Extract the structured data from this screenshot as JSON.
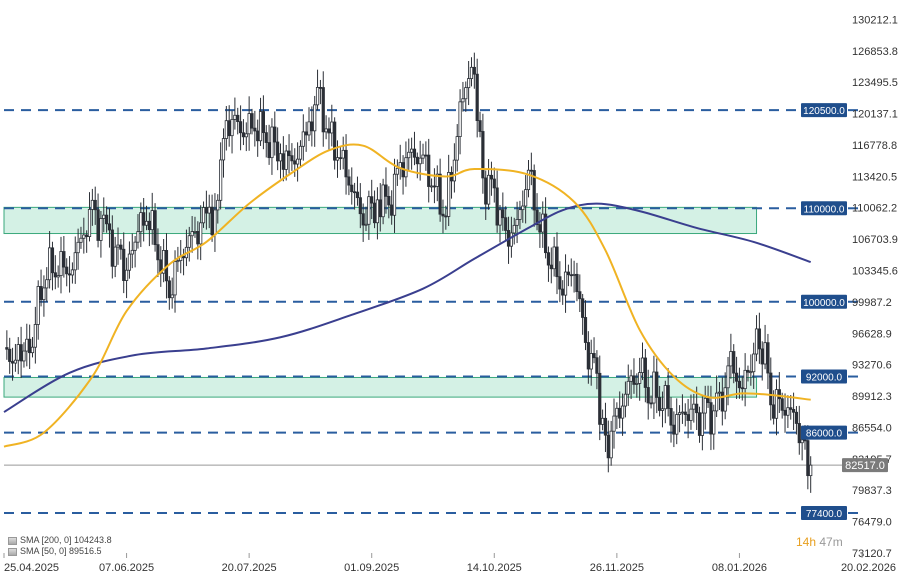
{
  "colors": {
    "level_line": "#2a5d9f",
    "level_tag": "#1f4e8c",
    "zone_fill": "#cdeee0",
    "zone_border": "#3aa87c",
    "candle": "#2b2f36",
    "sma50": "#f0b323",
    "sma200": "#3a3f8f",
    "last_price_line": "#999999",
    "last_price_tag": "#7b7b7b",
    "countdown_hours": "#e8a020"
  },
  "countdown": {
    "hours": "14h",
    "minutes": "47m"
  },
  "legend": [
    {
      "icon": "sma-indicator-icon",
      "label": "SMA [200, 0] 104243.8"
    },
    {
      "icon": "sma-indicator-icon",
      "label": "SMA [50, 0] 89516.5"
    }
  ],
  "chart_data": {
    "type": "candlestick",
    "title": "",
    "xlabel": "",
    "ylabel": "",
    "ylim": [
      73120.7,
      131000
    ],
    "price_ticks": [
      {
        "value": 130212.1,
        "label": "130212.1"
      },
      {
        "value": 126853.8,
        "label": "126853.8"
      },
      {
        "value": 123495.5,
        "label": "123495.5"
      },
      {
        "value": 120137.1,
        "label": "120137.1"
      },
      {
        "value": 116778.8,
        "label": "116778.8"
      },
      {
        "value": 113420.5,
        "label": "113420.5"
      },
      {
        "value": 110062.2,
        "label": "110062.2"
      },
      {
        "value": 106703.9,
        "label": "106703.9"
      },
      {
        "value": 103345.6,
        "label": "103345.6"
      },
      {
        "value": 99987.2,
        "label": "99987.2"
      },
      {
        "value": 96628.9,
        "label": "96628.9"
      },
      {
        "value": 93270.6,
        "label": "93270.6"
      },
      {
        "value": 89912.3,
        "label": "89912.3"
      },
      {
        "value": 86554.0,
        "label": "86554.0"
      },
      {
        "value": 83195.7,
        "label": "83195.7"
      },
      {
        "value": 79837.3,
        "label": "79837.3"
      },
      {
        "value": 76479.0,
        "label": "76479.0"
      },
      {
        "value": 73120.7,
        "label": "73120.7"
      }
    ],
    "date_ticks": [
      {
        "date": "2025-04-25",
        "label": "25.04.2025"
      },
      {
        "date": "2025-06-07",
        "label": "07.06.2025"
      },
      {
        "date": "2025-07-20",
        "label": "20.07.2025"
      },
      {
        "date": "2025-09-01",
        "label": "01.09.2025"
      },
      {
        "date": "2025-10-14",
        "label": "14.10.2025"
      },
      {
        "date": "2025-11-26",
        "label": "26.11.2025"
      },
      {
        "date": "2026-01-08",
        "label": "08.01.2026"
      },
      {
        "date": "2026-02-20",
        "label": "20.02.2026"
      }
    ],
    "x_range": [
      "2025-04-25",
      "2026-02-20"
    ],
    "levels": [
      {
        "value": 120500,
        "label": "120500.0"
      },
      {
        "value": 110000,
        "label": "110000.0"
      },
      {
        "value": 100000,
        "label": "100000.0"
      },
      {
        "value": 92000,
        "label": "92000.0"
      },
      {
        "value": 86000,
        "label": "86000.0"
      },
      {
        "value": 77400,
        "label": "77400.0"
      }
    ],
    "zones": [
      {
        "from": 107300,
        "to": 110100,
        "start": "2025-04-25",
        "end": "2026-01-14"
      },
      {
        "from": 89800,
        "to": 91900,
        "start": "2025-04-25",
        "end": "2026-01-14"
      }
    ],
    "last_price": {
      "value": 82517,
      "label": "82517.0"
    },
    "series": [
      {
        "name": "Price",
        "candles": [
          {
            "x": "2025-04-25",
            "close": 94200
          },
          {
            "x": "2025-05-01",
            "close": 93800
          },
          {
            "x": "2025-05-05",
            "close": 96200
          },
          {
            "x": "2025-05-09",
            "close": 103000
          },
          {
            "x": "2025-05-13",
            "close": 104000
          },
          {
            "x": "2025-05-18",
            "close": 103500
          },
          {
            "x": "2025-05-22",
            "close": 106500
          },
          {
            "x": "2025-05-26",
            "close": 109800
          },
          {
            "x": "2025-05-31",
            "close": 107000
          },
          {
            "x": "2025-06-04",
            "close": 105000
          },
          {
            "x": "2025-06-07",
            "close": 103000
          },
          {
            "x": "2025-06-10",
            "close": 106800
          },
          {
            "x": "2025-06-14",
            "close": 109600
          },
          {
            "x": "2025-06-18",
            "close": 105600
          },
          {
            "x": "2025-06-22",
            "close": 101200
          },
          {
            "x": "2025-06-26",
            "close": 105000
          },
          {
            "x": "2025-06-30",
            "close": 107000
          },
          {
            "x": "2025-07-05",
            "close": 108600
          },
          {
            "x": "2025-07-09",
            "close": 110000
          },
          {
            "x": "2025-07-11",
            "close": 117000
          },
          {
            "x": "2025-07-14",
            "close": 119600
          },
          {
            "x": "2025-07-18",
            "close": 118200
          },
          {
            "x": "2025-07-22",
            "close": 119000
          },
          {
            "x": "2025-07-26",
            "close": 117600
          },
          {
            "x": "2025-07-31",
            "close": 116000
          },
          {
            "x": "2025-08-04",
            "close": 114800
          },
          {
            "x": "2025-08-09",
            "close": 117300
          },
          {
            "x": "2025-08-13",
            "close": 122400
          },
          {
            "x": "2025-08-17",
            "close": 117800
          },
          {
            "x": "2025-08-21",
            "close": 115500
          },
          {
            "x": "2025-08-25",
            "close": 112200
          },
          {
            "x": "2025-08-29",
            "close": 108700
          },
          {
            "x": "2025-09-03",
            "close": 111200
          },
          {
            "x": "2025-09-07",
            "close": 110300
          },
          {
            "x": "2025-09-11",
            "close": 114500
          },
          {
            "x": "2025-09-15",
            "close": 115800
          },
          {
            "x": "2025-09-19",
            "close": 115300
          },
          {
            "x": "2025-09-23",
            "close": 112300
          },
          {
            "x": "2025-09-27",
            "close": 109500
          },
          {
            "x": "2025-10-01",
            "close": 118300
          },
          {
            "x": "2025-10-04",
            "close": 123500
          },
          {
            "x": "2025-10-07",
            "close": 124600
          },
          {
            "x": "2025-10-10",
            "close": 113000
          },
          {
            "x": "2025-10-14",
            "close": 111500
          },
          {
            "x": "2025-10-18",
            "close": 106800
          },
          {
            "x": "2025-10-22",
            "close": 108200
          },
          {
            "x": "2025-10-26",
            "close": 114000
          },
          {
            "x": "2025-10-30",
            "close": 108000
          },
          {
            "x": "2025-11-03",
            "close": 104500
          },
          {
            "x": "2025-11-07",
            "close": 101700
          },
          {
            "x": "2025-11-11",
            "close": 103500
          },
          {
            "x": "2025-11-15",
            "close": 95500
          },
          {
            "x": "2025-11-19",
            "close": 91500
          },
          {
            "x": "2025-11-22",
            "close": 84500
          },
          {
            "x": "2025-11-26",
            "close": 87500
          },
          {
            "x": "2025-11-30",
            "close": 91000
          },
          {
            "x": "2025-12-04",
            "close": 92800
          },
          {
            "x": "2025-12-08",
            "close": 90300
          },
          {
            "x": "2025-12-12",
            "close": 90000
          },
          {
            "x": "2025-12-16",
            "close": 87000
          },
          {
            "x": "2025-12-20",
            "close": 88300
          },
          {
            "x": "2025-12-24",
            "close": 87500
          },
          {
            "x": "2025-12-28",
            "close": 87800
          },
          {
            "x": "2026-01-01",
            "close": 88700
          },
          {
            "x": "2026-01-05",
            "close": 93500
          },
          {
            "x": "2026-01-09",
            "close": 90500
          },
          {
            "x": "2026-01-13",
            "close": 95300
          },
          {
            "x": "2026-01-16",
            "close": 95000
          },
          {
            "x": "2026-01-20",
            "close": 89300
          },
          {
            "x": "2026-01-24",
            "close": 89000
          },
          {
            "x": "2026-01-28",
            "close": 87000
          },
          {
            "x": "2026-01-31",
            "close": 84000
          },
          {
            "x": "2026-02-02",
            "close": 82517
          }
        ]
      },
      {
        "name": "SMA [200, 0]",
        "points": [
          {
            "x": "2025-04-25",
            "y": 88200
          },
          {
            "x": "2025-05-18",
            "y": 92400
          },
          {
            "x": "2025-06-10",
            "y": 94300
          },
          {
            "x": "2025-07-05",
            "y": 95000
          },
          {
            "x": "2025-07-31",
            "y": 96200
          },
          {
            "x": "2025-08-25",
            "y": 98600
          },
          {
            "x": "2025-09-19",
            "y": 101400
          },
          {
            "x": "2025-10-07",
            "y": 104600
          },
          {
            "x": "2025-10-26",
            "y": 107900
          },
          {
            "x": "2025-11-07",
            "y": 109800
          },
          {
            "x": "2025-11-19",
            "y": 110500
          },
          {
            "x": "2025-12-04",
            "y": 109700
          },
          {
            "x": "2025-12-24",
            "y": 107900
          },
          {
            "x": "2026-01-13",
            "y": 106400
          },
          {
            "x": "2026-02-02",
            "y": 104243.8
          }
        ]
      },
      {
        "name": "SMA [50, 0]",
        "points": [
          {
            "x": "2025-04-25",
            "y": 84500
          },
          {
            "x": "2025-05-09",
            "y": 86000
          },
          {
            "x": "2025-05-26",
            "y": 92000
          },
          {
            "x": "2025-06-07",
            "y": 99000
          },
          {
            "x": "2025-06-22",
            "y": 104000
          },
          {
            "x": "2025-07-05",
            "y": 106400
          },
          {
            "x": "2025-07-20",
            "y": 110500
          },
          {
            "x": "2025-08-04",
            "y": 113800
          },
          {
            "x": "2025-08-17",
            "y": 116200
          },
          {
            "x": "2025-08-29",
            "y": 116700
          },
          {
            "x": "2025-09-11",
            "y": 114300
          },
          {
            "x": "2025-09-27",
            "y": 113400
          },
          {
            "x": "2025-10-07",
            "y": 114200
          },
          {
            "x": "2025-10-26",
            "y": 113600
          },
          {
            "x": "2025-11-11",
            "y": 110700
          },
          {
            "x": "2025-11-22",
            "y": 105500
          },
          {
            "x": "2025-12-04",
            "y": 97000
          },
          {
            "x": "2025-12-16",
            "y": 92000
          },
          {
            "x": "2025-12-28",
            "y": 89800
          },
          {
            "x": "2026-01-09",
            "y": 90200
          },
          {
            "x": "2026-01-20",
            "y": 90000
          },
          {
            "x": "2026-02-02",
            "y": 89516.5
          }
        ]
      }
    ]
  }
}
